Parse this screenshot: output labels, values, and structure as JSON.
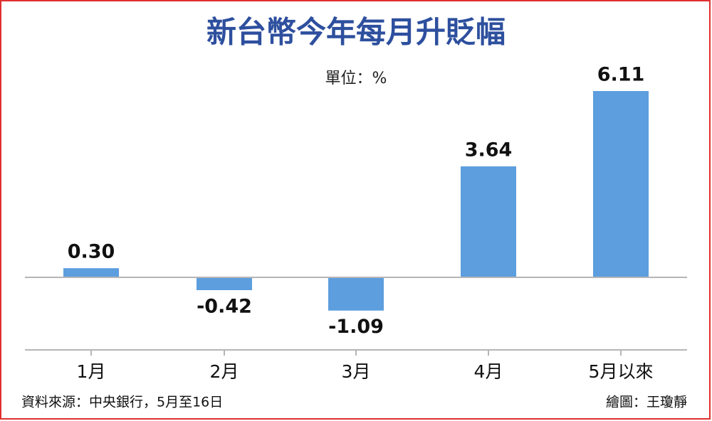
{
  "chart_data": {
    "type": "bar",
    "title": "新台幣今年每月升貶幅",
    "subtitle": "單位：%",
    "categories": [
      "1月",
      "2月",
      "3月",
      "4月",
      "5月以來"
    ],
    "values": [
      0.3,
      -0.42,
      -1.09,
      3.64,
      6.11
    ],
    "value_labels": [
      "0.30",
      "-0.42",
      "-1.09",
      "3.64",
      "6.11"
    ],
    "color": "#5c9ede",
    "source": "資料來源：中央銀行，5月至16日",
    "credit": "繪圖：王瓊靜"
  }
}
